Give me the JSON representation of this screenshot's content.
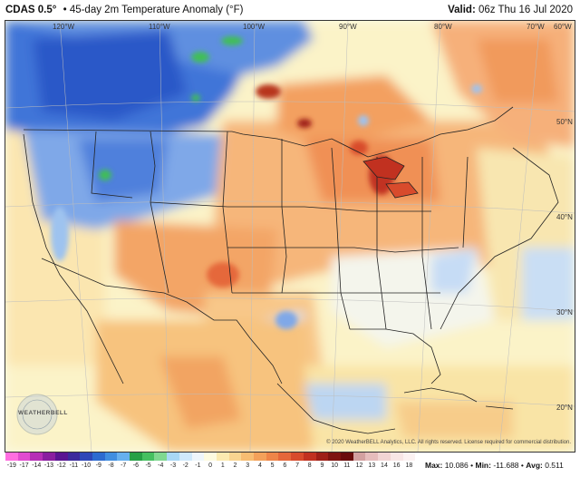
{
  "header": {
    "product": "CDAS 0.5°",
    "separator": "•",
    "subtitle": "45-day 2m Temperature Anomaly (°F)",
    "valid_label": "Valid:",
    "valid_value": "06z Thu 16 Jul 2020"
  },
  "map": {
    "lon_labels": [
      "120°W",
      "110°W",
      "100°W",
      "90°W",
      "80°W",
      "70°W",
      "60°W"
    ],
    "lat_labels": [
      "50°N",
      "40°N",
      "30°N",
      "20°N"
    ],
    "anomaly_colors": {
      "strong_cold": "#2a58c8",
      "cold": "#5f8fe0",
      "cool": "#9ec3ef",
      "near_zero": "#eef5f8",
      "slight_warm": "#f8e8a8",
      "warm": "#f9c07a",
      "hot": "#f08a4a",
      "very_hot": "#b8341c",
      "green_cold": "#3fbf55"
    }
  },
  "logo": {
    "text": "WEATHERBELL"
  },
  "copyright": "© 2020 WeatherBELL Analytics, LLC. All rights reserved. License required for commercial distribution.",
  "colorbar": {
    "labels": [
      "-19",
      "-17",
      "-14",
      "-13",
      "-12",
      "-11",
      "-10",
      "-9",
      "-8",
      "-7",
      "-6",
      "-5",
      "-4",
      "-3",
      "-2",
      "-1",
      "0",
      "1",
      "2",
      "3",
      "4",
      "5",
      "6",
      "7",
      "8",
      "9",
      "10",
      "11",
      "12",
      "13",
      "14",
      "16",
      "18"
    ],
    "colors": [
      "#ff6ee0",
      "#e14bd0",
      "#b62fb6",
      "#8a1fa0",
      "#5a1592",
      "#3c2a9c",
      "#2d47b8",
      "#2c6bd0",
      "#3f8ee0",
      "#66b0ee",
      "#26a045",
      "#45c060",
      "#7fd890",
      "#a8d8f5",
      "#cfe9fb",
      "#eef6fb",
      "#fdfbe0",
      "#fbeab0",
      "#f9d590",
      "#f7bd72",
      "#f3a15a",
      "#ee8548",
      "#e5673a",
      "#d84b2c",
      "#c13120",
      "#9e1f17",
      "#7e1310",
      "#6a0c0c",
      "#d3a0a0",
      "#e6bcbc",
      "#f1d4d4",
      "#f8e6e6",
      "#fcf2f2"
    ]
  },
  "stats": {
    "max_label": "Max:",
    "max_value": "10.086",
    "min_label": "Min:",
    "min_value": "-11.688",
    "avg_label": "Avg:",
    "avg_value": "0.511",
    "sep": "•"
  }
}
